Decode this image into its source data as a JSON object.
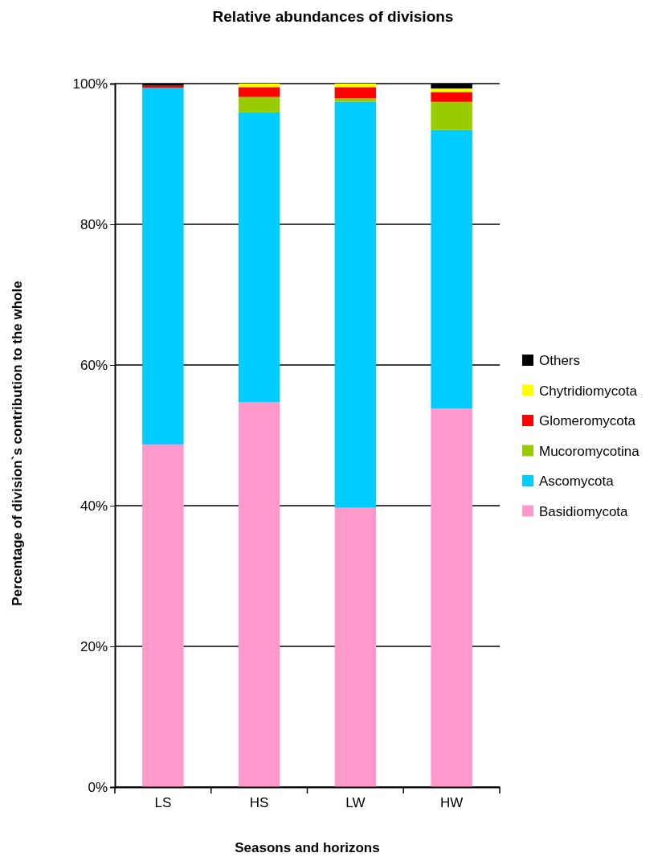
{
  "chart_data": {
    "type": "bar",
    "stacked": true,
    "title": "Relative abundances of divisions",
    "xlabel": "Seasons and horizons",
    "ylabel": "Percentage of division`s contribution to the whole",
    "categories": [
      "LS",
      "HS",
      "LW",
      "HW"
    ],
    "series": [
      {
        "name": "Basidiomycota",
        "color": "#ff99cc",
        "values": [
          48.7,
          54.7,
          39.7,
          53.8
        ]
      },
      {
        "name": "Ascomycota",
        "color": "#00ccff",
        "values": [
          50.7,
          41.2,
          57.7,
          39.6
        ]
      },
      {
        "name": "Mucoromycotina",
        "color": "#99cc00",
        "values": [
          0,
          2.2,
          0.5,
          4.0
        ]
      },
      {
        "name": "Glomeromycota",
        "color": "#ff0000",
        "values": [
          0.3,
          1.4,
          1.6,
          1.4
        ]
      },
      {
        "name": "Chytridiomycota",
        "color": "#ffff00",
        "values": [
          0,
          0.5,
          0.5,
          0.5
        ]
      },
      {
        "name": "Others",
        "color": "#000000",
        "values": [
          0.3,
          0,
          0,
          0.7
        ]
      }
    ],
    "ylim": [
      0,
      100
    ],
    "yticks": [
      {
        "value": 0,
        "label": "0%"
      },
      {
        "value": 20,
        "label": "20%"
      },
      {
        "value": 40,
        "label": "40%"
      },
      {
        "value": 60,
        "label": "60%"
      },
      {
        "value": 80,
        "label": "80%"
      },
      {
        "value": 100,
        "label": "100%"
      }
    ],
    "grid": "y",
    "legend": "right"
  }
}
